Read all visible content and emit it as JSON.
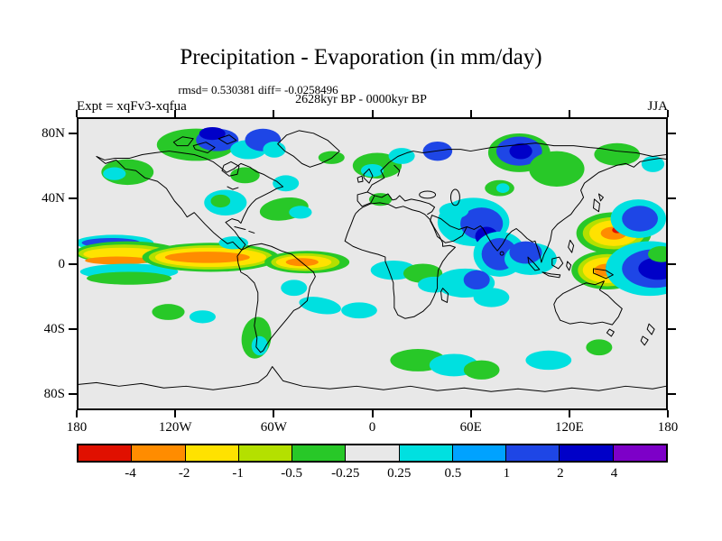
{
  "header": {
    "title": "Precipitation - Evaporation (in mm/day)",
    "stats_line": "rmsd= 0.530381 diff= -0.0258496",
    "period_line": "2628kyr BP - 0000kyr BP",
    "experiment_label": "Expt = xqFv3-xqfua",
    "season_label": "JJA"
  },
  "chart_data": {
    "type": "heatmap",
    "subtype": "filled-contour-world-map",
    "title": "Precipitation - Evaporation (in mm/day)",
    "units": "mm/day",
    "rmsd": 0.530381,
    "diff": -0.0258496,
    "comparison": "2628kyr BP - 0000kyr BP",
    "experiment": "xqFv3-xqfua",
    "season": "JJA",
    "projection": "cylindrical-equidistant",
    "lon_range": [
      -180,
      180
    ],
    "lat_range": [
      -90,
      90
    ],
    "lat_ticks": [
      {
        "label": "80N",
        "lat": 80
      },
      {
        "label": "40N",
        "lat": 40
      },
      {
        "label": "0",
        "lat": 0
      },
      {
        "label": "40S",
        "lat": -40
      },
      {
        "label": "80S",
        "lat": -80
      }
    ],
    "lon_ticks": [
      {
        "label": "180",
        "lon": -180
      },
      {
        "label": "120W",
        "lon": -120
      },
      {
        "label": "60W",
        "lon": -60
      },
      {
        "label": "0",
        "lon": 0
      },
      {
        "label": "60E",
        "lon": 60
      },
      {
        "label": "120E",
        "lon": 120
      },
      {
        "label": "180",
        "lon": 180
      }
    ],
    "colorbar": {
      "levels": [
        "-4",
        "-2",
        "-1",
        "-0.5",
        "-0.25",
        "0.25",
        "0.5",
        "1",
        "2",
        "4"
      ],
      "colors": [
        "#e01000",
        "#ff8c00",
        "#ffe200",
        "#b4e000",
        "#28c828",
        "#e8e8e8",
        "#00e0e0",
        "#00a2ff",
        "#1e46e6",
        "#0000c8",
        "#7d00c8"
      ]
    },
    "background_color": "#e8e8e8",
    "anomaly_regions": [
      [
        -150,
        57,
        16,
        8,
        4,
        0
      ],
      [
        -158,
        56,
        7,
        4,
        6,
        0
      ],
      [
        -108,
        74,
        24,
        10,
        4,
        0
      ],
      [
        -95,
        77,
        13,
        7,
        8,
        0
      ],
      [
        -98,
        81,
        8,
        4,
        9,
        0
      ],
      [
        -76,
        71,
        11,
        6,
        6,
        0
      ],
      [
        -67,
        77,
        11,
        7,
        8,
        0
      ],
      [
        -60,
        71,
        7,
        5,
        6,
        0
      ],
      [
        -78,
        55,
        9,
        5,
        4,
        0
      ],
      [
        -53,
        50,
        8,
        5,
        6,
        0
      ],
      [
        -25,
        66,
        8,
        4,
        4,
        0
      ],
      [
        3,
        61,
        15,
        8,
        4,
        0
      ],
      [
        0,
        58,
        7,
        4,
        6,
        0
      ],
      [
        18,
        67,
        8,
        5,
        6,
        0
      ],
      [
        40,
        70,
        9,
        6,
        8,
        0
      ],
      [
        90,
        69,
        19,
        12,
        4,
        0
      ],
      [
        90,
        70,
        14,
        9,
        8,
        0
      ],
      [
        91,
        70,
        7,
        5,
        9,
        0
      ],
      [
        113,
        59,
        17,
        11,
        4,
        0
      ],
      [
        150,
        68,
        14,
        7,
        4,
        0
      ],
      [
        172,
        62,
        7,
        5,
        6,
        0
      ],
      [
        78,
        47,
        9,
        5,
        4,
        0
      ],
      [
        80,
        47,
        4,
        3,
        6,
        0
      ],
      [
        -90,
        38,
        13,
        8,
        6,
        0
      ],
      [
        -93,
        39,
        6,
        4,
        4,
        0
      ],
      [
        -54,
        34,
        15,
        7,
        4,
        -8
      ],
      [
        -44,
        32,
        7,
        4,
        6,
        0
      ],
      [
        5,
        40,
        7,
        4,
        4,
        0
      ],
      [
        62,
        26,
        22,
        15,
        6,
        0
      ],
      [
        67,
        25,
        13,
        10,
        8,
        0
      ],
      [
        70,
        17,
        7,
        6,
        9,
        0
      ],
      [
        50,
        33,
        9,
        5,
        6,
        0
      ],
      [
        78,
        6,
        16,
        14,
        6,
        0
      ],
      [
        78,
        6,
        11,
        10,
        8,
        0
      ],
      [
        148,
        19,
        23,
        13,
        4,
        0
      ],
      [
        148,
        19,
        19,
        10,
        3,
        0
      ],
      [
        148,
        19,
        15,
        8,
        2,
        0
      ],
      [
        148,
        19,
        8,
        4,
        1,
        0
      ],
      [
        150,
        21,
        3,
        2,
        0,
        0
      ],
      [
        163,
        28,
        17,
        12,
        6,
        0
      ],
      [
        164,
        28,
        11,
        8,
        8,
        0
      ],
      [
        -158,
        13,
        24,
        5,
        6,
        0
      ],
      [
        -160,
        13,
        18,
        3,
        8,
        0
      ],
      [
        -150,
        7,
        32,
        7,
        4,
        0
      ],
      [
        -152,
        6.5,
        28,
        5.5,
        3,
        0
      ],
      [
        -153,
        6,
        24,
        4,
        2,
        0
      ],
      [
        -156,
        2,
        20,
        2.5,
        1,
        0
      ],
      [
        -149,
        -5,
        30,
        5,
        6,
        0
      ],
      [
        -149,
        -9,
        26,
        4,
        4,
        0
      ],
      [
        -99,
        4,
        42,
        9,
        4,
        0
      ],
      [
        -99,
        4,
        38,
        7.5,
        3,
        0
      ],
      [
        -99,
        4,
        34,
        6,
        2,
        0
      ],
      [
        -101,
        4,
        26,
        3.5,
        1,
        0
      ],
      [
        -85,
        13,
        9,
        4,
        6,
        0
      ],
      [
        -40,
        1,
        26,
        7,
        4,
        0
      ],
      [
        -41,
        1,
        21,
        5.5,
        3,
        0
      ],
      [
        -42,
        1,
        17,
        4,
        2,
        0
      ],
      [
        -43,
        1,
        10,
        2.5,
        1,
        0
      ],
      [
        13,
        -4,
        14,
        6,
        6,
        0
      ],
      [
        31,
        -6,
        12,
        6,
        4,
        0
      ],
      [
        38,
        -13,
        10,
        5,
        6,
        0
      ],
      [
        57,
        -12,
        18,
        9,
        6,
        0
      ],
      [
        64,
        -10,
        8,
        6,
        8,
        0
      ],
      [
        73,
        -21,
        11,
        6,
        6,
        0
      ],
      [
        97,
        3,
        16,
        10,
        6,
        0
      ],
      [
        94,
        7,
        10,
        7,
        8,
        0
      ],
      [
        144,
        -4,
        22,
        12,
        4,
        0
      ],
      [
        144,
        -4,
        18,
        10,
        3,
        0
      ],
      [
        144,
        -4,
        15,
        8,
        2,
        0
      ],
      [
        144,
        -4,
        8,
        4,
        1,
        0
      ],
      [
        146,
        -2,
        3,
        2,
        0,
        0
      ],
      [
        170,
        -3,
        27,
        17,
        6,
        0
      ],
      [
        173,
        -3,
        20,
        12,
        8,
        0
      ],
      [
        175,
        -3,
        12,
        7,
        9,
        0
      ],
      [
        177,
        6,
        8,
        5,
        4,
        0
      ],
      [
        -32,
        -26,
        13,
        5,
        6,
        10
      ],
      [
        -8,
        -29,
        11,
        5,
        6,
        0
      ],
      [
        -48,
        -15,
        8,
        5,
        6,
        0
      ],
      [
        -71,
        -46,
        9,
        13,
        4,
        8
      ],
      [
        -69,
        -51,
        5,
        6,
        6,
        0
      ],
      [
        -125,
        -30,
        10,
        5,
        4,
        0
      ],
      [
        -104,
        -33,
        8,
        4,
        6,
        0
      ],
      [
        28,
        -60,
        17,
        7,
        4,
        0
      ],
      [
        50,
        -63,
        15,
        7,
        6,
        0
      ],
      [
        67,
        -66,
        11,
        6,
        4,
        0
      ],
      [
        108,
        -60,
        14,
        6,
        6,
        0
      ],
      [
        139,
        -52,
        8,
        5,
        4,
        0
      ]
    ]
  }
}
